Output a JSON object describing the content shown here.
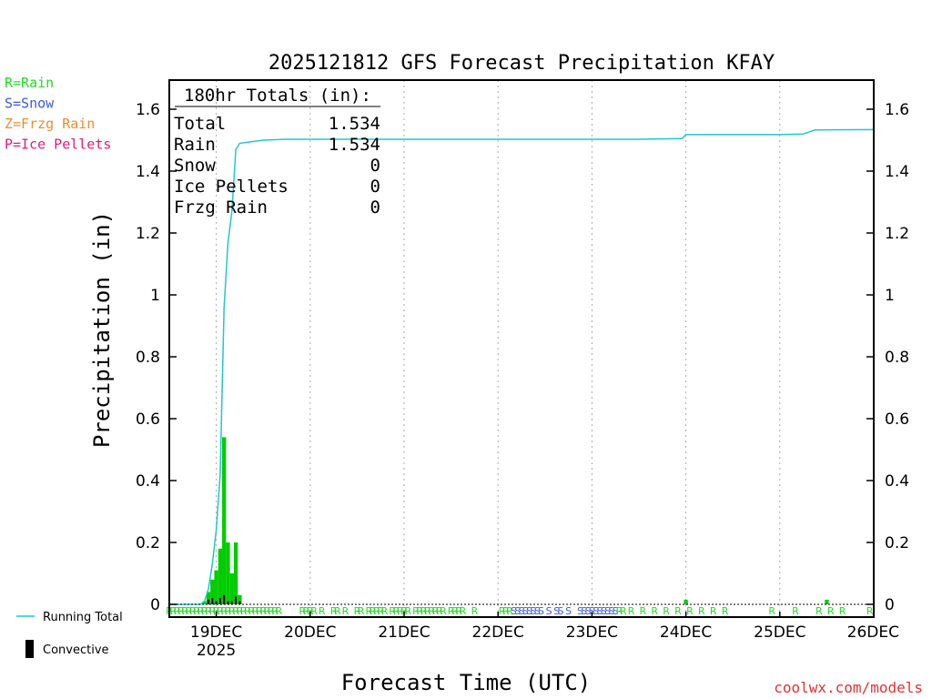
{
  "chart_data": {
    "type": "bar",
    "title": "2025121812 GFS Forecast Precipitation KFAY",
    "xlabel": "Forecast Time (UTC)",
    "ylabel": "Precipitation (in)",
    "ylim": [
      0,
      1.68
    ],
    "xlim_hours": [
      0,
      180
    ],
    "y_ticks": [
      "0",
      "0.2",
      "0.4",
      "0.6",
      "0.8",
      "1",
      "1.2",
      "1.4",
      "1.6"
    ],
    "x_ticks": [
      {
        "hour": 12,
        "label": "19DEC",
        "sub": "2025"
      },
      {
        "hour": 36,
        "label": "20DEC",
        "sub": ""
      },
      {
        "hour": 60,
        "label": "21DEC",
        "sub": ""
      },
      {
        "hour": 84,
        "label": "22DEC",
        "sub": ""
      },
      {
        "hour": 108,
        "label": "23DEC",
        "sub": ""
      },
      {
        "hour": 132,
        "label": "24DEC",
        "sub": ""
      },
      {
        "hour": 156,
        "label": "25DEC",
        "sub": ""
      },
      {
        "hour": 180,
        "label": "26DEC",
        "sub": ""
      }
    ],
    "legend": [
      {
        "label": "R=Rain",
        "color": "#22dd22"
      },
      {
        "label": "S=Snow",
        "color": "#3b5bdb"
      },
      {
        "label": "Z=Frzg Rain",
        "color": "#f28c28"
      },
      {
        "label": "P=Ice Pellets",
        "color": "#e6197a"
      }
    ],
    "series_legend": [
      {
        "label": "Running Total",
        "color": "#1ec8d4"
      },
      {
        "label": "Convective",
        "color": "#000000"
      }
    ],
    "totals": {
      "header": "180hr Totals (in):",
      "rows": [
        {
          "label": "Total",
          "value": "1.534"
        },
        {
          "label": "Rain",
          "value": "1.534"
        },
        {
          "label": "Snow",
          "value": "0"
        },
        {
          "label": "Ice Pellets",
          "value": "0"
        },
        {
          "label": "Frzg Rain",
          "value": "0"
        }
      ]
    },
    "series": [
      {
        "name": "Precipitation",
        "color": "#00cc00",
        "points": [
          [
            9,
            0.01
          ],
          [
            10,
            0.04
          ],
          [
            11,
            0.08
          ],
          [
            12,
            0.11
          ],
          [
            13,
            0.18
          ],
          [
            14,
            0.54
          ],
          [
            15,
            0.2
          ],
          [
            16,
            0.1
          ],
          [
            17,
            0.2
          ],
          [
            18,
            0.03
          ],
          [
            132,
            0.015
          ],
          [
            168,
            0.015
          ]
        ]
      },
      {
        "name": "Convective",
        "color": "#000000",
        "points": [
          [
            10,
            0.015
          ],
          [
            11,
            0.02
          ],
          [
            12,
            0.01
          ],
          [
            13,
            0.02
          ],
          [
            14,
            0.03
          ],
          [
            15,
            0.01
          ],
          [
            16,
            0.01
          ],
          [
            17,
            0.025
          ],
          [
            18,
            0.01
          ]
        ]
      },
      {
        "name": "Running Total",
        "color": "#1ec8d4",
        "points": [
          [
            0,
            0
          ],
          [
            8,
            0
          ],
          [
            9,
            0.01
          ],
          [
            10,
            0.05
          ],
          [
            11,
            0.13
          ],
          [
            12,
            0.24
          ],
          [
            13,
            0.42
          ],
          [
            14,
            0.96
          ],
          [
            15,
            1.17
          ],
          [
            16,
            1.27
          ],
          [
            17,
            1.47
          ],
          [
            18,
            1.49
          ],
          [
            21,
            1.495
          ],
          [
            24,
            1.5
          ],
          [
            30,
            1.503
          ],
          [
            60,
            1.503
          ],
          [
            90,
            1.503
          ],
          [
            120,
            1.503
          ],
          [
            131,
            1.505
          ],
          [
            132,
            1.518
          ],
          [
            156,
            1.518
          ],
          [
            162,
            1.52
          ],
          [
            165,
            1.533
          ],
          [
            180,
            1.534
          ]
        ]
      }
    ],
    "ptype_codes": [
      {
        "hour": 0,
        "code": "R"
      },
      {
        "hour": 1,
        "code": "R"
      },
      {
        "hour": 2,
        "code": "R"
      },
      {
        "hour": 3,
        "code": "R"
      },
      {
        "hour": 4,
        "code": "R"
      },
      {
        "hour": 5,
        "code": "R"
      },
      {
        "hour": 6,
        "code": "R"
      },
      {
        "hour": 7,
        "code": "R"
      },
      {
        "hour": 8,
        "code": "R"
      },
      {
        "hour": 9,
        "code": "R"
      },
      {
        "hour": 10,
        "code": "R"
      },
      {
        "hour": 11,
        "code": "R"
      },
      {
        "hour": 12,
        "code": "R"
      },
      {
        "hour": 13,
        "code": "R"
      },
      {
        "hour": 14,
        "code": "R"
      },
      {
        "hour": 15,
        "code": "R"
      },
      {
        "hour": 16,
        "code": "R"
      },
      {
        "hour": 17,
        "code": "R"
      },
      {
        "hour": 18,
        "code": "R"
      },
      {
        "hour": 19,
        "code": "R"
      },
      {
        "hour": 20,
        "code": "R"
      },
      {
        "hour": 21,
        "code": "R"
      },
      {
        "hour": 22,
        "code": "R"
      },
      {
        "hour": 23,
        "code": "R"
      },
      {
        "hour": 24,
        "code": "R"
      },
      {
        "hour": 25,
        "code": "R"
      },
      {
        "hour": 26,
        "code": "R"
      },
      {
        "hour": 27,
        "code": "R"
      },
      {
        "hour": 28,
        "code": "R"
      },
      {
        "hour": 34,
        "code": "R"
      },
      {
        "hour": 35,
        "code": "R"
      },
      {
        "hour": 36,
        "code": "R"
      },
      {
        "hour": 37,
        "code": "R"
      },
      {
        "hour": 39,
        "code": "R"
      },
      {
        "hour": 42,
        "code": "R"
      },
      {
        "hour": 43,
        "code": "R"
      },
      {
        "hour": 45,
        "code": "R"
      },
      {
        "hour": 48,
        "code": "R"
      },
      {
        "hour": 49,
        "code": "R"
      },
      {
        "hour": 51,
        "code": "R"
      },
      {
        "hour": 52,
        "code": "R"
      },
      {
        "hour": 53,
        "code": "R"
      },
      {
        "hour": 54,
        "code": "R"
      },
      {
        "hour": 55,
        "code": "R"
      },
      {
        "hour": 57,
        "code": "R"
      },
      {
        "hour": 58,
        "code": "R"
      },
      {
        "hour": 59,
        "code": "R"
      },
      {
        "hour": 60,
        "code": "R"
      },
      {
        "hour": 61,
        "code": "R"
      },
      {
        "hour": 63,
        "code": "R"
      },
      {
        "hour": 64,
        "code": "R"
      },
      {
        "hour": 65,
        "code": "R"
      },
      {
        "hour": 66,
        "code": "R"
      },
      {
        "hour": 67,
        "code": "R"
      },
      {
        "hour": 68,
        "code": "R"
      },
      {
        "hour": 69,
        "code": "R"
      },
      {
        "hour": 70,
        "code": "R"
      },
      {
        "hour": 72,
        "code": "R"
      },
      {
        "hour": 73,
        "code": "R"
      },
      {
        "hour": 74,
        "code": "R"
      },
      {
        "hour": 75,
        "code": "R"
      },
      {
        "hour": 78,
        "code": "R"
      },
      {
        "hour": 85,
        "code": "R"
      },
      {
        "hour": 86,
        "code": "R"
      },
      {
        "hour": 87,
        "code": "R"
      },
      {
        "hour": 88,
        "code": "S"
      },
      {
        "hour": 89,
        "code": "S"
      },
      {
        "hour": 90,
        "code": "S"
      },
      {
        "hour": 91,
        "code": "S"
      },
      {
        "hour": 92,
        "code": "S"
      },
      {
        "hour": 93,
        "code": "S"
      },
      {
        "hour": 94,
        "code": "S"
      },
      {
        "hour": 95,
        "code": "S"
      },
      {
        "hour": 97,
        "code": "S"
      },
      {
        "hour": 99,
        "code": "S"
      },
      {
        "hour": 100,
        "code": "S"
      },
      {
        "hour": 102,
        "code": "S"
      },
      {
        "hour": 105,
        "code": "S"
      },
      {
        "hour": 106,
        "code": "S"
      },
      {
        "hour": 107,
        "code": "S"
      },
      {
        "hour": 108,
        "code": "S"
      },
      {
        "hour": 109,
        "code": "S"
      },
      {
        "hour": 110,
        "code": "S"
      },
      {
        "hour": 111,
        "code": "S"
      },
      {
        "hour": 112,
        "code": "S"
      },
      {
        "hour": 113,
        "code": "S"
      },
      {
        "hour": 114,
        "code": "S"
      },
      {
        "hour": 115,
        "code": "R"
      },
      {
        "hour": 116,
        "code": "R"
      },
      {
        "hour": 118,
        "code": "R"
      },
      {
        "hour": 121,
        "code": "R"
      },
      {
        "hour": 124,
        "code": "R"
      },
      {
        "hour": 127,
        "code": "R"
      },
      {
        "hour": 130,
        "code": "R"
      },
      {
        "hour": 133,
        "code": "R"
      },
      {
        "hour": 136,
        "code": "R"
      },
      {
        "hour": 139,
        "code": "R"
      },
      {
        "hour": 142,
        "code": "R"
      },
      {
        "hour": 154,
        "code": "R"
      },
      {
        "hour": 160,
        "code": "R"
      },
      {
        "hour": 166,
        "code": "R"
      },
      {
        "hour": 169,
        "code": "R"
      },
      {
        "hour": 172,
        "code": "R"
      },
      {
        "hour": 179,
        "code": "R"
      }
    ]
  },
  "credit": "coolwx.com/models"
}
